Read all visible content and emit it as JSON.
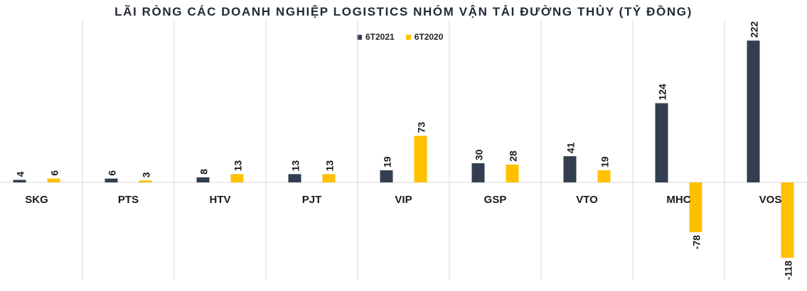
{
  "chart_data": {
    "type": "bar",
    "title": "LÃI RÒNG CÁC DOANH NGHIỆP LOGISTICS NHÓM VẬN TẢI ĐƯỜNG THỦY (TỶ ĐỒNG)",
    "categories": [
      "SKG",
      "PTS",
      "HTV",
      "PJT",
      "VIP",
      "GSP",
      "VTO",
      "MHC",
      "VOS"
    ],
    "series": [
      {
        "name": "6T2021",
        "color": "#333f50",
        "values": [
          4,
          6,
          8,
          13,
          19,
          30,
          41,
          124,
          222
        ]
      },
      {
        "name": "6T2020",
        "color": "#ffc000",
        "values": [
          6,
          3,
          13,
          13,
          73,
          28,
          19,
          -78,
          -118
        ]
      }
    ],
    "xlabel": "",
    "ylabel": "",
    "ylim": [
      -150,
      250
    ],
    "grid": false,
    "legend_position": "top-center"
  }
}
